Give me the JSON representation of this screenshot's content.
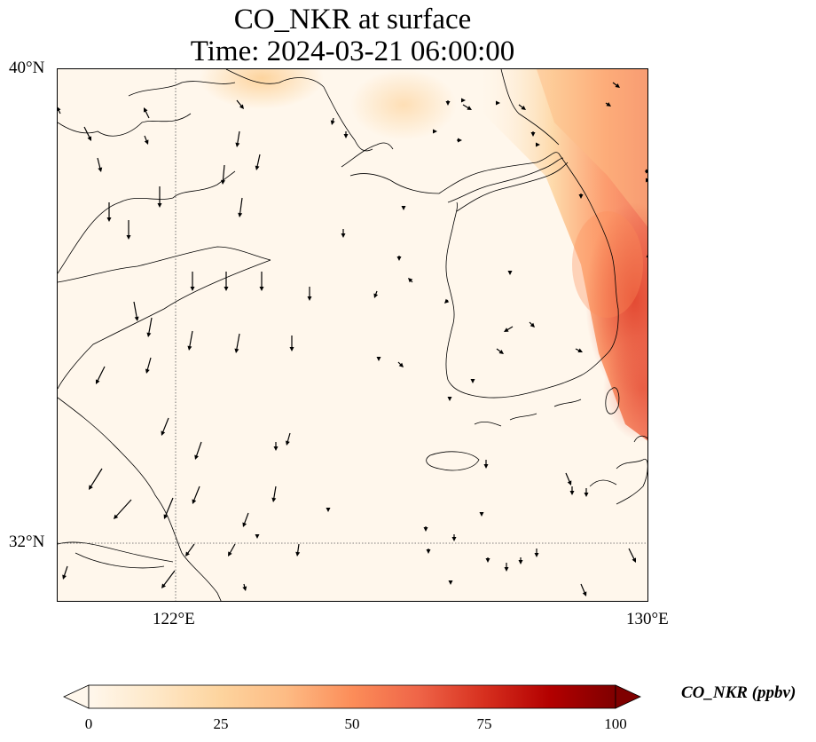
{
  "title_line1": "CO_NKR at surface",
  "title_line2": "Time: 2024-03-21 06:00:00",
  "lat_labels": [
    "40°N",
    "32°N"
  ],
  "lon_labels": [
    "122°E",
    "130°E"
  ],
  "colorbar": {
    "title": "CO_NKR (ppbv)",
    "ticks": [
      "0",
      "25",
      "50",
      "75",
      "100"
    ],
    "min": 0,
    "max": 100,
    "extend": "both",
    "colormap": "OrRd",
    "colors": [
      "#fff7ec",
      "#fee8c8",
      "#fdd49e",
      "#fdbb84",
      "#fc8d59",
      "#ef6548",
      "#d7301f",
      "#b30000",
      "#7f0000"
    ]
  },
  "map": {
    "extent_lon": [
      120,
      130
    ],
    "extent_lat": [
      31,
      40
    ],
    "gridlines": {
      "lon": 122,
      "lat": 32,
      "style": "dotted"
    }
  }
}
